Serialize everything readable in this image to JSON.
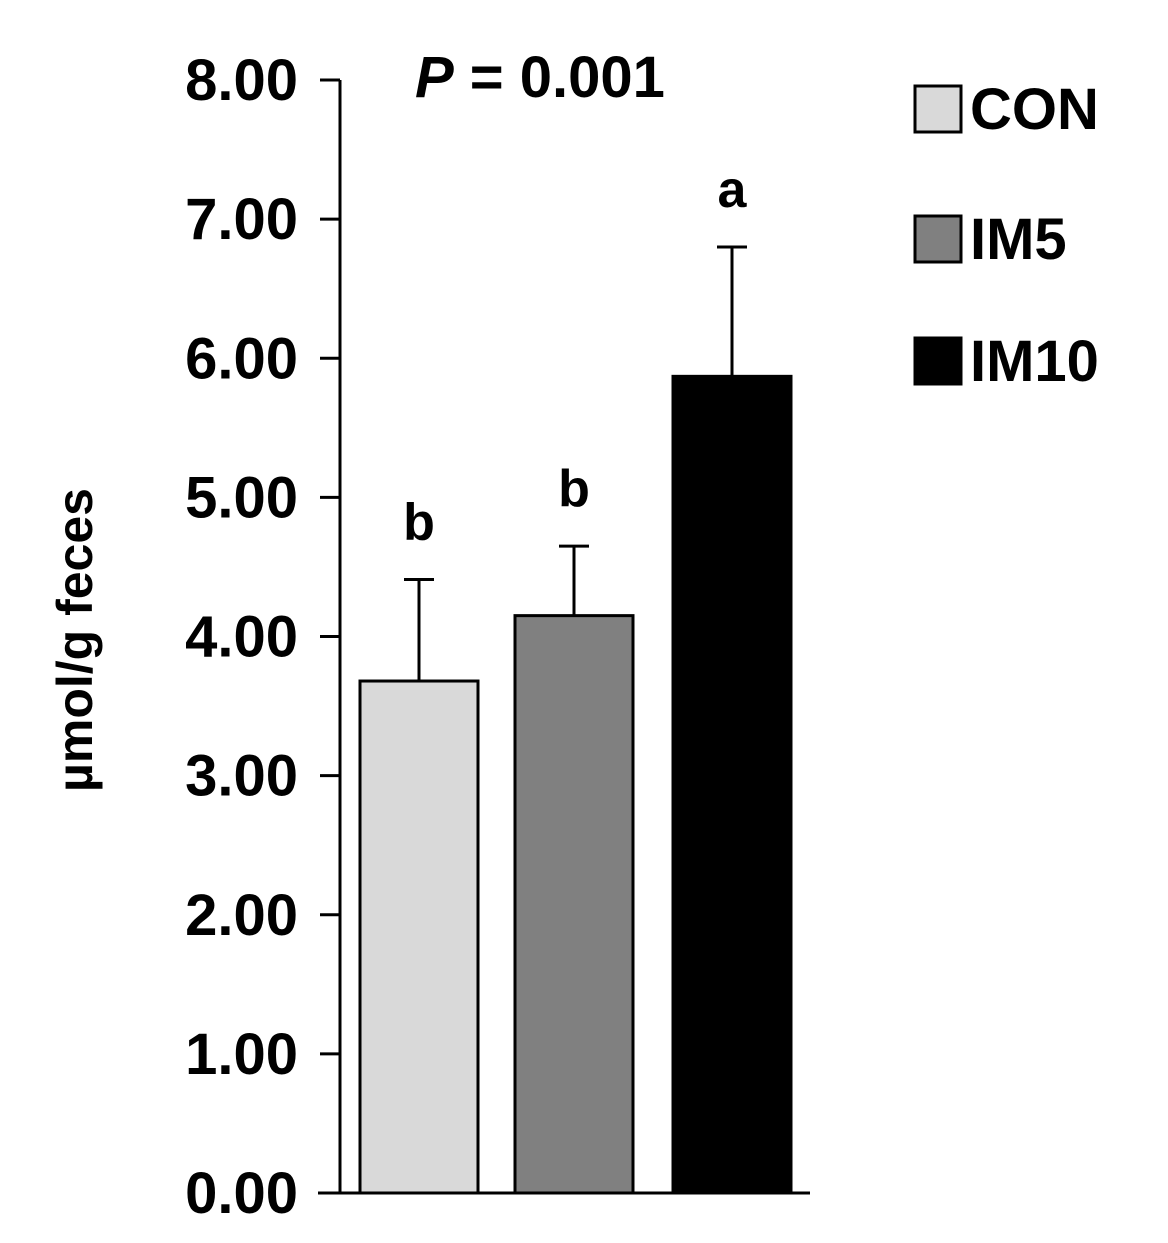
{
  "chart_data": {
    "type": "bar",
    "categories": [
      "CON",
      "IM5",
      "IM10"
    ],
    "values": [
      3.68,
      4.15,
      5.87
    ],
    "errors": [
      0.73,
      0.5,
      0.93
    ],
    "significance_letters": [
      "b",
      "b",
      "a"
    ],
    "colors": [
      "#d9d9d9",
      "#808080",
      "#000000"
    ],
    "ylabel": "µmol/g feces",
    "ylim": [
      0,
      8
    ],
    "yticks": [
      "0.00",
      "1.00",
      "2.00",
      "3.00",
      "4.00",
      "5.00",
      "6.00",
      "7.00",
      "8.00"
    ],
    "annotation": {
      "p_symbol": "P",
      "p_text": " = 0.001"
    },
    "legend": {
      "placement": "top-right",
      "entries": [
        "CON",
        "IM5",
        "IM10"
      ]
    },
    "grid": false
  }
}
